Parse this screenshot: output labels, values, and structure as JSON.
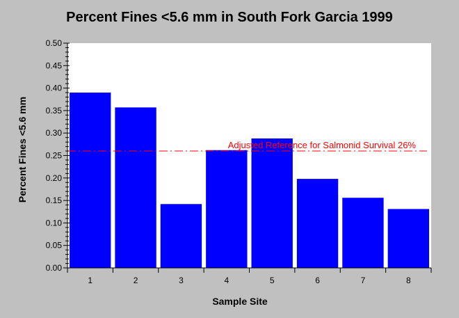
{
  "chart_data": {
    "type": "bar",
    "title": "Percent Fines <5.6 mm in South Fork Garcia 1999",
    "xlabel": "Sample Site",
    "ylabel": "Percent Fines <5.6 mm",
    "categories": [
      "1",
      "2",
      "3",
      "4",
      "5",
      "6",
      "7",
      "8"
    ],
    "values": [
      0.39,
      0.357,
      0.142,
      0.262,
      0.288,
      0.198,
      0.156,
      0.131
    ],
    "ylim": [
      0,
      0.5
    ],
    "yticks": [
      "0.00",
      "0.05",
      "0.10",
      "0.15",
      "0.20",
      "0.25",
      "0.30",
      "0.35",
      "0.40",
      "0.45",
      "0.50"
    ],
    "bar_color": "#0000ff",
    "reference_line": {
      "value": 0.26,
      "label": "Adjusted Reference for Salmonid Survival 26%",
      "color": "#ff0000"
    },
    "grid": false,
    "legend": "none"
  }
}
